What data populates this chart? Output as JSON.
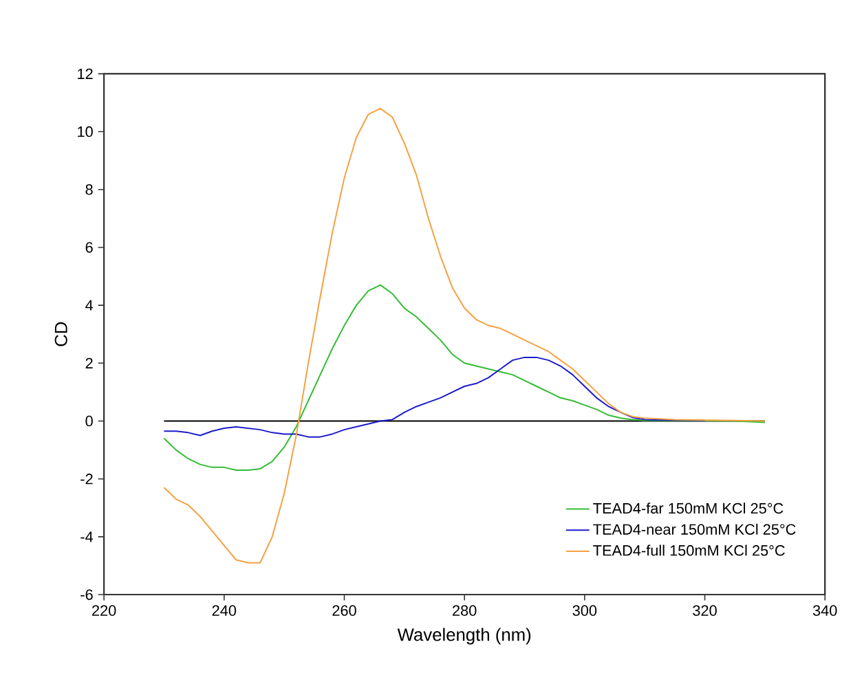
{
  "chart_data": {
    "type": "line",
    "xlabel": "Wavelength (nm)",
    "ylabel": "CD",
    "xlim": [
      220,
      340
    ],
    "xticks": [
      220,
      240,
      260,
      280,
      300,
      320,
      340
    ],
    "ylim": [
      -6,
      12
    ],
    "yticks": [
      -6,
      -4,
      -2,
      0,
      2,
      4,
      6,
      8,
      10,
      12
    ],
    "x": [
      230,
      232,
      234,
      236,
      238,
      240,
      242,
      244,
      246,
      248,
      250,
      252,
      254,
      256,
      258,
      260,
      262,
      264,
      266,
      268,
      270,
      272,
      274,
      276,
      278,
      280,
      282,
      284,
      286,
      288,
      290,
      292,
      294,
      296,
      298,
      300,
      302,
      304,
      306,
      308,
      310,
      315,
      320,
      325,
      330
    ],
    "series": [
      {
        "name": "TEAD4-far 150mM KCl 25°C",
        "color": "#33bb33",
        "values": [
          -0.6,
          -1.0,
          -1.3,
          -1.5,
          -1.6,
          -1.6,
          -1.7,
          -1.7,
          -1.65,
          -1.4,
          -0.9,
          -0.2,
          0.7,
          1.6,
          2.5,
          3.3,
          4.0,
          4.5,
          4.7,
          4.4,
          3.9,
          3.6,
          3.2,
          2.8,
          2.3,
          2.0,
          1.9,
          1.8,
          1.7,
          1.6,
          1.4,
          1.2,
          1.0,
          0.8,
          0.7,
          0.55,
          0.4,
          0.2,
          0.1,
          0.05,
          0.02,
          0.02,
          0.01,
          0.0,
          -0.05
        ]
      },
      {
        "name": "TEAD4-near 150mM KCl 25°C",
        "color": "#1a1acc",
        "values": [
          -0.35,
          -0.35,
          -0.4,
          -0.5,
          -0.35,
          -0.25,
          -0.2,
          -0.25,
          -0.3,
          -0.4,
          -0.45,
          -0.45,
          -0.55,
          -0.55,
          -0.45,
          -0.3,
          -0.2,
          -0.1,
          0.0,
          0.05,
          0.3,
          0.5,
          0.65,
          0.8,
          1.0,
          1.2,
          1.3,
          1.5,
          1.8,
          2.1,
          2.2,
          2.2,
          2.1,
          1.9,
          1.6,
          1.2,
          0.8,
          0.5,
          0.3,
          0.12,
          0.05,
          0.03,
          0.02,
          null,
          null
        ]
      },
      {
        "name": "TEAD4-full 150mM KCl 25°C",
        "color": "#f5a040",
        "values": [
          -2.3,
          -2.7,
          -2.9,
          -3.3,
          -3.8,
          -4.3,
          -4.8,
          -4.9,
          -4.9,
          -4.0,
          -2.5,
          -0.5,
          2.0,
          4.3,
          6.5,
          8.4,
          9.8,
          10.6,
          10.8,
          10.5,
          9.6,
          8.5,
          7.0,
          5.7,
          4.6,
          3.9,
          3.5,
          3.3,
          3.2,
          3.0,
          2.8,
          2.6,
          2.4,
          2.1,
          1.8,
          1.4,
          1.0,
          0.6,
          0.3,
          0.15,
          0.1,
          0.05,
          0.03,
          0.02,
          0.0
        ]
      }
    ],
    "ref_lines": [
      {
        "axis": "y",
        "value": 0,
        "color": "#000000"
      }
    ],
    "legend": "bottom right",
    "grid": false,
    "marker": "none",
    "line_style": "solid"
  }
}
